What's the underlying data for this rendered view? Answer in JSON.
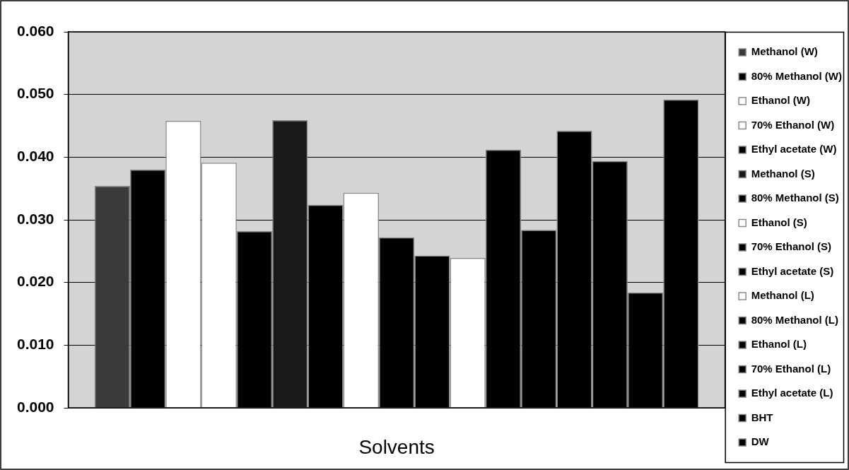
{
  "chart_data": {
    "type": "bar",
    "xlabel": "Solvents",
    "categories": [
      null
    ],
    "series": [
      {
        "name": "Methanol (W)",
        "color": "#3a3a3a",
        "values": [
          0.0354
        ]
      },
      {
        "name": "80% Methanol (W)",
        "color": "#000000",
        "values": [
          0.038
        ]
      },
      {
        "name": "Ethanol (W)",
        "color": "#ffffff",
        "values": [
          0.0458
        ]
      },
      {
        "name": "70% Ethanol (W)",
        "color": "#ffffff",
        "values": [
          0.0391
        ]
      },
      {
        "name": "Ethyl acetate (W)",
        "color": "#000000",
        "values": [
          0.0282
        ]
      },
      {
        "name": "Methanol (S)",
        "color": "#1a1a1a",
        "values": [
          0.0459
        ]
      },
      {
        "name": "80% Methanol (S)",
        "color": "#000000",
        "values": [
          0.0324
        ]
      },
      {
        "name": "Ethanol (S)",
        "color": "#ffffff",
        "values": [
          0.0343
        ]
      },
      {
        "name": "70% Ethanol (S)",
        "color": "#000000",
        "values": [
          0.0272
        ]
      },
      {
        "name": "Ethyl acetate (S)",
        "color": "#000000",
        "values": [
          0.0243
        ]
      },
      {
        "name": "Methanol (L)",
        "color": "#ffffff",
        "values": [
          0.0239
        ]
      },
      {
        "name": "80% Methanol (L)",
        "color": "#000000",
        "values": [
          0.0412
        ]
      },
      {
        "name": "Ethanol (L)",
        "color": "#000000",
        "values": [
          0.0284
        ]
      },
      {
        "name": "70% Ethanol (L)",
        "color": "#000000",
        "values": [
          0.0442
        ]
      },
      {
        "name": "Ethyl acetate (L)",
        "color": "#000000",
        "values": [
          0.0394
        ]
      },
      {
        "name": "BHT",
        "color": "#000000",
        "values": [
          0.0184
        ]
      },
      {
        "name": "DW",
        "color": "#000000",
        "values": [
          0.0492
        ]
      }
    ],
    "ylim": [
      0,
      0.06
    ],
    "yticks": [
      {
        "value": 0,
        "label": "0.000"
      },
      {
        "value": 0.01,
        "label": "0.010"
      },
      {
        "value": 0.02,
        "label": "0.020"
      },
      {
        "value": 0.03,
        "label": "0.030"
      },
      {
        "value": 0.04,
        "label": "0.040"
      },
      {
        "value": 0.05,
        "label": "0.050"
      },
      {
        "value": 0.06,
        "label": "0.060"
      }
    ],
    "grid": "y",
    "legend": "right"
  }
}
